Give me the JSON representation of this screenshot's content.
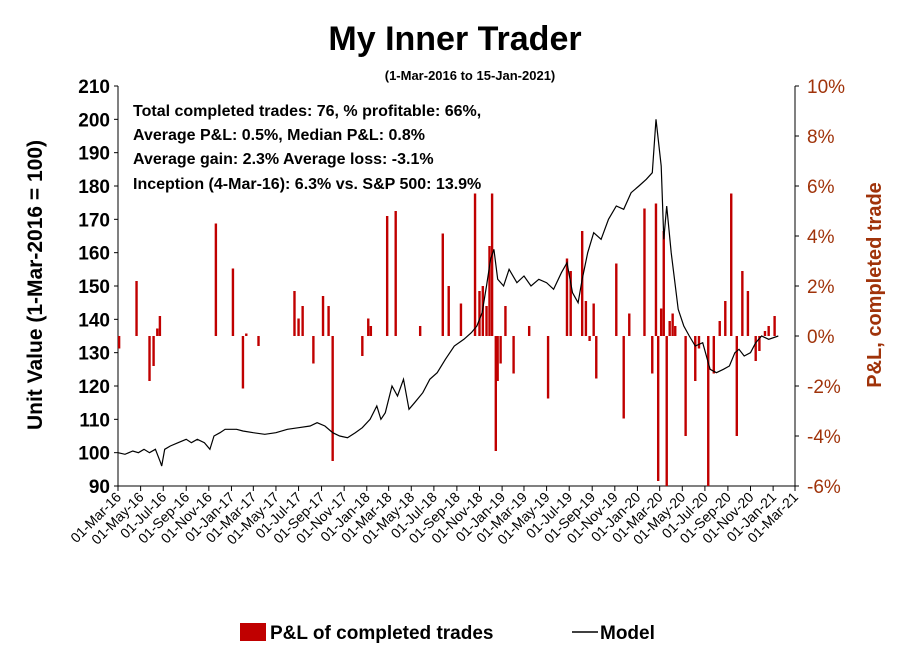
{
  "chart_data": {
    "type": "bar+line",
    "title": "My Inner Trader",
    "subtitle": "(1-Mar-2016 to 15-Jan-2021)",
    "ylabel_left": "Unit Value (1-Mar-2016 = 100)",
    "ylabel_right": "P&L, completed trade",
    "ylim_left": [
      90,
      210
    ],
    "yticks_left": [
      90,
      100,
      110,
      120,
      130,
      140,
      150,
      160,
      170,
      180,
      190,
      200,
      210
    ],
    "ylim_right": [
      -6,
      10
    ],
    "yticks_right": [
      "-6%",
      "-4%",
      "-2%",
      "0%",
      "2%",
      "4%",
      "6%",
      "8%",
      "10%"
    ],
    "yticks_right_values": [
      -6,
      -4,
      -2,
      0,
      2,
      4,
      6,
      8,
      10
    ],
    "x_date_range": [
      "2016-03-01",
      "2021-03-01"
    ],
    "x_tick_labels": [
      "01-Mar-16",
      "01-May-16",
      "01-Jul-16",
      "01-Sep-16",
      "01-Nov-16",
      "01-Jan-17",
      "01-Mar-17",
      "01-May-17",
      "01-Jul-17",
      "01-Sep-17",
      "01-Nov-17",
      "01-Jan-18",
      "01-Mar-18",
      "01-May-18",
      "01-Jul-18",
      "01-Sep-18",
      "01-Nov-18",
      "01-Jan-19",
      "01-Mar-19",
      "01-May-19",
      "01-Jul-19",
      "01-Sep-19",
      "01-Nov-19",
      "01-Jan-20",
      "01-Mar-20",
      "01-May-20",
      "01-Jul-20",
      "01-Sep-20",
      "01-Nov-20",
      "01-Jan-21",
      "01-Mar-21"
    ],
    "annotations": [
      "Total completed trades: 76, % profitable: 66%,",
      "Average P&L: 0.5%, Median P&L: 0.8%",
      "Average gain: 2.3% Average loss: -3.1%",
      "Inception (4-Mar-16): 6.3% vs. S&P 500: 13.9%"
    ],
    "legend": [
      "P&L of completed trades",
      "Model"
    ],
    "colors": {
      "bars": "#c00000",
      "line": "#000000",
      "right_axis": "#a0330a"
    },
    "series": [
      {
        "name": "Model",
        "type": "line",
        "points": [
          [
            "2016-03-01",
            100
          ],
          [
            "2016-03-20",
            99.5
          ],
          [
            "2016-04-10",
            100.5
          ],
          [
            "2016-04-25",
            100
          ],
          [
            "2016-05-10",
            101
          ],
          [
            "2016-05-25",
            100
          ],
          [
            "2016-06-10",
            101
          ],
          [
            "2016-06-24",
            97
          ],
          [
            "2016-06-27",
            96
          ],
          [
            "2016-07-05",
            101
          ],
          [
            "2016-07-20",
            102
          ],
          [
            "2016-08-10",
            103
          ],
          [
            "2016-09-01",
            104
          ],
          [
            "2016-09-15",
            103
          ],
          [
            "2016-10-01",
            104
          ],
          [
            "2016-10-20",
            103
          ],
          [
            "2016-11-04",
            101
          ],
          [
            "2016-11-15",
            105
          ],
          [
            "2016-12-01",
            106
          ],
          [
            "2016-12-15",
            107
          ],
          [
            "2017-01-15",
            107
          ],
          [
            "2017-02-01",
            106.5
          ],
          [
            "2017-03-01",
            106
          ],
          [
            "2017-04-01",
            105.5
          ],
          [
            "2017-05-01",
            106
          ],
          [
            "2017-06-01",
            107
          ],
          [
            "2017-07-01",
            107.5
          ],
          [
            "2017-08-01",
            108
          ],
          [
            "2017-08-20",
            109
          ],
          [
            "2017-09-10",
            108
          ],
          [
            "2017-10-01",
            106
          ],
          [
            "2017-10-20",
            105
          ],
          [
            "2017-11-10",
            104.5
          ],
          [
            "2017-12-01",
            106
          ],
          [
            "2017-12-20",
            107.5
          ],
          [
            "2018-01-10",
            110
          ],
          [
            "2018-01-28",
            114
          ],
          [
            "2018-02-08",
            110
          ],
          [
            "2018-02-20",
            112
          ],
          [
            "2018-03-10",
            120
          ],
          [
            "2018-03-25",
            117
          ],
          [
            "2018-04-10",
            122
          ],
          [
            "2018-04-25",
            113
          ],
          [
            "2018-05-10",
            115
          ],
          [
            "2018-06-01",
            118
          ],
          [
            "2018-06-20",
            122
          ],
          [
            "2018-07-10",
            124
          ],
          [
            "2018-08-01",
            128
          ],
          [
            "2018-08-25",
            132
          ],
          [
            "2018-09-20",
            134
          ],
          [
            "2018-10-10",
            136
          ],
          [
            "2018-10-25",
            138
          ],
          [
            "2018-11-08",
            142
          ],
          [
            "2018-11-20",
            150
          ],
          [
            "2018-12-01",
            158
          ],
          [
            "2018-12-10",
            161
          ],
          [
            "2018-12-20",
            152
          ],
          [
            "2019-01-05",
            150
          ],
          [
            "2019-01-20",
            155
          ],
          [
            "2019-02-10",
            151
          ],
          [
            "2019-03-01",
            153
          ],
          [
            "2019-03-20",
            150
          ],
          [
            "2019-04-10",
            152
          ],
          [
            "2019-05-01",
            151
          ],
          [
            "2019-05-20",
            149
          ],
          [
            "2019-06-10",
            154
          ],
          [
            "2019-06-25",
            157
          ],
          [
            "2019-07-10",
            148
          ],
          [
            "2019-07-25",
            145
          ],
          [
            "2019-08-05",
            152
          ],
          [
            "2019-08-20",
            160
          ],
          [
            "2019-09-05",
            166
          ],
          [
            "2019-09-25",
            164
          ],
          [
            "2019-10-15",
            170
          ],
          [
            "2019-11-05",
            174
          ],
          [
            "2019-11-25",
            173
          ],
          [
            "2019-12-15",
            178
          ],
          [
            "2020-01-05",
            180
          ],
          [
            "2020-01-25",
            182
          ],
          [
            "2020-02-10",
            184
          ],
          [
            "2020-02-20",
            200
          ],
          [
            "2020-03-05",
            186
          ],
          [
            "2020-03-12",
            164
          ],
          [
            "2020-03-20",
            174
          ],
          [
            "2020-04-01",
            160
          ],
          [
            "2020-04-10",
            152
          ],
          [
            "2020-04-20",
            143
          ],
          [
            "2020-05-05",
            138
          ],
          [
            "2020-05-20",
            135
          ],
          [
            "2020-06-05",
            132
          ],
          [
            "2020-06-25",
            133
          ],
          [
            "2020-07-15",
            125
          ],
          [
            "2020-08-01",
            124
          ],
          [
            "2020-08-20",
            125
          ],
          [
            "2020-09-05",
            126
          ],
          [
            "2020-09-20",
            130
          ],
          [
            "2020-10-01",
            131
          ],
          [
            "2020-10-15",
            129
          ],
          [
            "2020-11-01",
            130
          ],
          [
            "2020-11-15",
            133
          ],
          [
            "2020-12-01",
            135
          ],
          [
            "2020-12-20",
            134
          ],
          [
            "2021-01-15",
            135
          ]
        ]
      },
      {
        "name": "P&L of completed trades",
        "type": "bar",
        "points": [
          [
            "2016-03-04",
            -0.5
          ],
          [
            "2016-04-20",
            2.2
          ],
          [
            "2016-05-25",
            -1.8
          ],
          [
            "2016-06-05",
            -1.2
          ],
          [
            "2016-06-15",
            0.3
          ],
          [
            "2016-06-22",
            0.8
          ],
          [
            "2016-11-20",
            4.5
          ],
          [
            "2017-01-05",
            2.7
          ],
          [
            "2017-02-01",
            -2.1
          ],
          [
            "2017-02-10",
            0.1
          ],
          [
            "2017-03-15",
            -0.4
          ],
          [
            "2017-06-20",
            1.8
          ],
          [
            "2017-07-01",
            0.7
          ],
          [
            "2017-07-12",
            1.2
          ],
          [
            "2017-08-10",
            -1.1
          ],
          [
            "2017-09-05",
            1.6
          ],
          [
            "2017-09-20",
            1.2
          ],
          [
            "2017-10-01",
            -5.0
          ],
          [
            "2017-12-20",
            -0.8
          ],
          [
            "2018-01-05",
            0.7
          ],
          [
            "2018-01-12",
            0.4
          ],
          [
            "2018-02-25",
            4.8
          ],
          [
            "2018-03-20",
            5.0
          ],
          [
            "2018-05-25",
            0.4
          ],
          [
            "2018-07-25",
            4.1
          ],
          [
            "2018-08-10",
            2.0
          ],
          [
            "2018-09-12",
            1.3
          ],
          [
            "2018-10-20",
            5.7
          ],
          [
            "2018-11-01",
            1.8
          ],
          [
            "2018-11-10",
            2.0
          ],
          [
            "2018-11-20",
            1.2
          ],
          [
            "2018-11-28",
            3.6
          ],
          [
            "2018-12-05",
            5.7
          ],
          [
            "2018-12-15",
            -4.6
          ],
          [
            "2018-12-20",
            -1.8
          ],
          [
            "2018-12-28",
            -1.1
          ],
          [
            "2019-01-10",
            1.2
          ],
          [
            "2019-02-01",
            -1.5
          ],
          [
            "2019-03-15",
            0.4
          ],
          [
            "2019-05-05",
            -2.5
          ],
          [
            "2019-06-25",
            3.1
          ],
          [
            "2019-07-05",
            2.6
          ],
          [
            "2019-08-05",
            4.2
          ],
          [
            "2019-08-15",
            1.4
          ],
          [
            "2019-08-25",
            -0.2
          ],
          [
            "2019-09-05",
            1.3
          ],
          [
            "2019-09-12",
            -1.7
          ],
          [
            "2019-11-05",
            2.9
          ],
          [
            "2019-11-25",
            -3.3
          ],
          [
            "2019-12-10",
            0.9
          ],
          [
            "2020-01-20",
            5.1
          ],
          [
            "2020-02-10",
            -1.5
          ],
          [
            "2020-02-20",
            5.3
          ],
          [
            "2020-02-26",
            -5.8
          ],
          [
            "2020-03-05",
            1.1
          ],
          [
            "2020-03-12",
            4.2
          ],
          [
            "2020-03-20",
            -6.0
          ],
          [
            "2020-03-28",
            0.6
          ],
          [
            "2020-04-05",
            0.9
          ],
          [
            "2020-04-12",
            0.4
          ],
          [
            "2020-05-10",
            -4.0
          ],
          [
            "2020-06-05",
            -1.8
          ],
          [
            "2020-06-15",
            -0.5
          ],
          [
            "2020-07-10",
            -6.0
          ],
          [
            "2020-07-25",
            -1.5
          ],
          [
            "2020-08-10",
            0.6
          ],
          [
            "2020-08-25",
            1.4
          ],
          [
            "2020-09-10",
            5.7
          ],
          [
            "2020-09-25",
            -4.0
          ],
          [
            "2020-10-10",
            2.6
          ],
          [
            "2020-10-25",
            1.8
          ],
          [
            "2020-11-15",
            -1.0
          ],
          [
            "2020-11-25",
            -0.6
          ],
          [
            "2020-12-10",
            0.2
          ],
          [
            "2020-12-20",
            0.4
          ],
          [
            "2021-01-05",
            0.8
          ]
        ]
      }
    ]
  }
}
